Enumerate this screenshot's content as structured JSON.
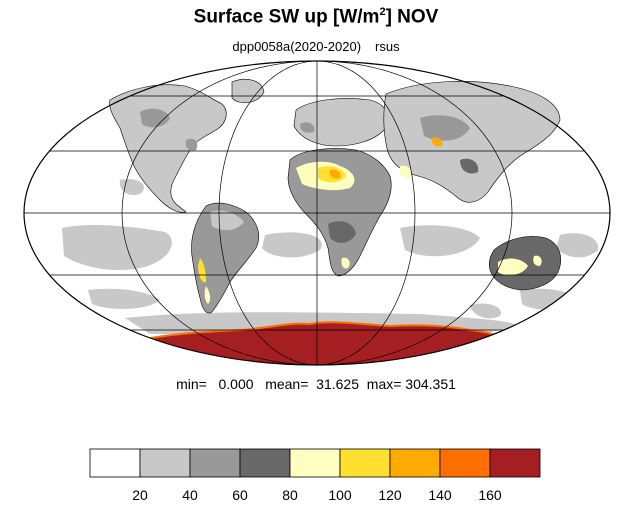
{
  "title": {
    "prefix": "Surface SW up [W/m",
    "sup": "2",
    "suffix": "]  NOV"
  },
  "subtitle": {
    "run": "dpp0058a(2020-2020)",
    "variable": "rsus"
  },
  "stats": {
    "text": "min=   0.000   mean=  31.625  max= 304.351"
  },
  "colorbar": {
    "colors": [
      "#ffffff",
      "#c8c8c8",
      "#999999",
      "#686868",
      "#ffffc0",
      "#ffdf2f",
      "#ffaa00",
      "#ff6f00",
      "#a41e22"
    ],
    "labels": [
      "20",
      "40",
      "60",
      "80",
      "100",
      "120",
      "140",
      "160"
    ]
  },
  "map": {
    "projection": "Mollweide",
    "colors": {
      "land_low": "#c8c8c8",
      "land_mid": "#999999",
      "land_high": "#686868",
      "pale": "#ffffc0",
      "yellow": "#ffdf2f",
      "orange": "#ffaa00",
      "red_orange": "#ff6f00",
      "ice": "#a41e22"
    }
  }
}
